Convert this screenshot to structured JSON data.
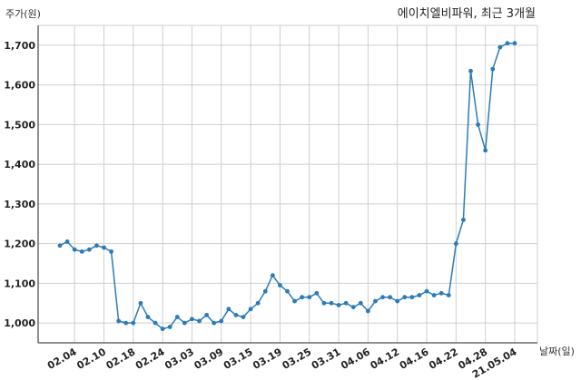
{
  "chart_data": {
    "type": "line",
    "title": "에이치엘비파워, 최근 3개월",
    "xlabel": "날짜(일)",
    "ylabel": "주가(원)",
    "ylim": [
      950,
      1750
    ],
    "yticks": [
      1000,
      1100,
      1200,
      1300,
      1400,
      1500,
      1600,
      1700
    ],
    "ytick_labels": [
      "1,000",
      "1,100",
      "1,200",
      "1,300",
      "1,400",
      "1,500",
      "1,600",
      "1,700"
    ],
    "xtick_labels": [
      "02.04",
      "02.10",
      "02.18",
      "02.24",
      "03.03",
      "03.09",
      "03.15",
      "03.19",
      "03.25",
      "03.31",
      "04.06",
      "04.12",
      "04.16",
      "04.22",
      "04.28",
      "21.05.04"
    ],
    "xtick_indices": [
      2,
      6,
      10,
      14,
      18,
      22,
      26,
      30,
      34,
      38,
      42,
      46,
      50,
      54,
      58,
      62
    ],
    "grid": true,
    "color": "#2b7bb9",
    "values": [
      1195,
      1205,
      1185,
      1180,
      1185,
      1195,
      1190,
      1180,
      1005,
      1000,
      1000,
      1050,
      1015,
      1000,
      985,
      990,
      1015,
      1000,
      1010,
      1005,
      1020,
      1000,
      1005,
      1035,
      1020,
      1015,
      1035,
      1050,
      1080,
      1120,
      1095,
      1080,
      1055,
      1065,
      1065,
      1075,
      1050,
      1050,
      1045,
      1050,
      1040,
      1050,
      1030,
      1055,
      1065,
      1065,
      1055,
      1065,
      1065,
      1070,
      1080,
      1070,
      1075,
      1070,
      1200,
      1260,
      1635,
      1500,
      1435,
      1640,
      1695,
      1705,
      1705
    ]
  }
}
